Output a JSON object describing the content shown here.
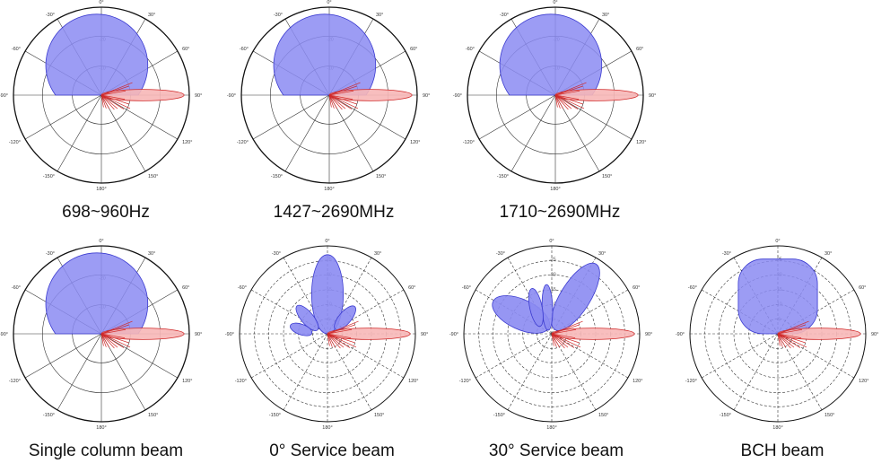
{
  "rows": [
    {
      "panels": [
        {
          "caption": "698~960Hz",
          "style": "solid",
          "ring_labels": [
            "-10",
            "-20"
          ]
        },
        {
          "caption": "1427~2690MHz",
          "style": "solid",
          "ring_labels": [
            "-10",
            "-20"
          ]
        },
        {
          "caption": "1710~2690MHz",
          "style": "solid",
          "ring_labels": [
            "-10",
            "-20"
          ]
        }
      ]
    },
    {
      "panels": [
        {
          "caption": "Single column beam",
          "style": "solid",
          "ring_labels": [
            "-10",
            "-20"
          ]
        },
        {
          "caption": "0° Service beam",
          "style": "dashed",
          "ring_labels": [
            "-5",
            "-10",
            "-15",
            "-20",
            "-25"
          ]
        },
        {
          "caption": "30° Service beam",
          "style": "dashed",
          "ring_labels": [
            "-5",
            "-10",
            "-15",
            "-20",
            "-25"
          ]
        },
        {
          "caption": "BCH beam",
          "style": "dashed",
          "ring_labels": [
            "-5",
            "-10",
            "-15",
            "-20",
            "-25"
          ]
        }
      ]
    }
  ],
  "angle_labels": [
    "0°",
    "30°",
    "60°",
    "90°",
    "120°",
    "150°",
    "180°",
    "-150°",
    "-120°",
    "-90°",
    "-60°",
    "-30°"
  ],
  "colors": {
    "blue_fill": "#8b8bf2",
    "blue_stroke": "#3b3bd0",
    "red_fill": "#f7b7b7",
    "red_stroke": "#d02a2a",
    "grid": "#333333"
  }
}
